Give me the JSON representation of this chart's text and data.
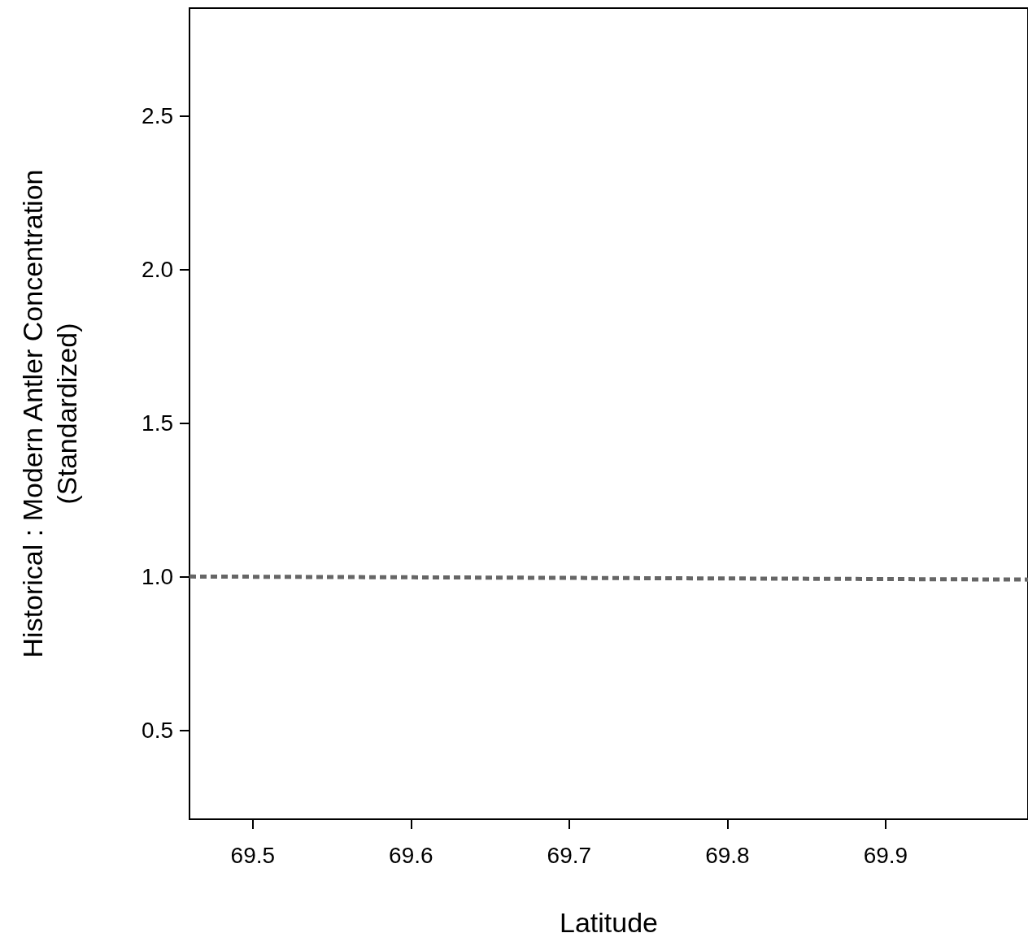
{
  "chart_data": {
    "type": "line",
    "xlabel": "Latitude",
    "ylabel": "Historical : Modern Antler Concentration\n(Standardized)",
    "series": [
      {
        "x": [
          69.46,
          69.99
        ],
        "values": [
          1.0,
          0.99
        ],
        "color": "#666666"
      }
    ],
    "xlim": [
      69.46,
      69.99
    ],
    "xticks": [
      69.5,
      69.6,
      69.7,
      69.8,
      69.9
    ],
    "ylim": [
      0.21,
      2.85
    ],
    "yticks": [
      {
        "value": 0.5,
        "label": "0.5"
      },
      {
        "value": 1,
        "label": "1.0"
      },
      {
        "value": 1.5,
        "label": "1.5"
      },
      {
        "value": 2,
        "label": "2.0"
      },
      {
        "value": 2.5,
        "label": "2.5"
      }
    ],
    "grid": false,
    "marker": "none",
    "line_style": "dashed"
  }
}
